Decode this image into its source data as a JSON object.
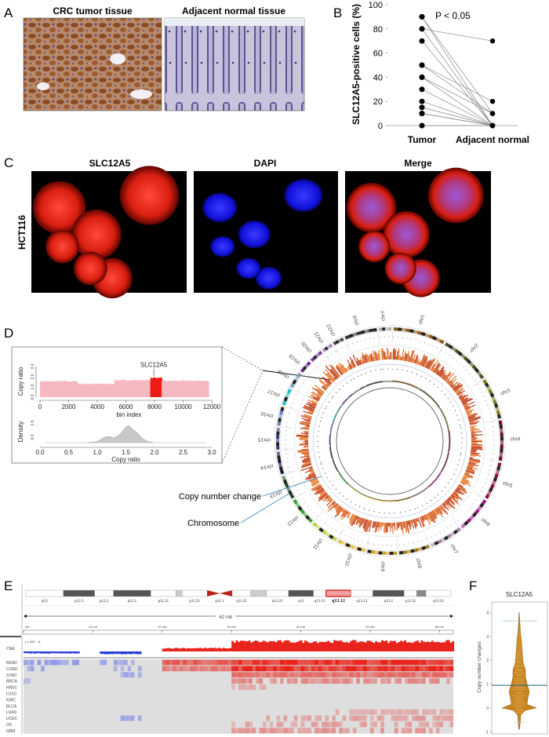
{
  "panel_labels": {
    "a": "A",
    "b": "B",
    "c": "C",
    "d": "D",
    "e": "E",
    "f": "F"
  },
  "panel_a": {
    "tumor_title": "CRC tumor tissue",
    "normal_title": "Adjacent normal tissue"
  },
  "panel_c": {
    "titles": [
      "SLC12A5",
      "DAPI",
      "Merge"
    ],
    "cell_line": "HCT116"
  },
  "panel_d": {
    "gene_label": "SLC12A5",
    "copy_ratio_ylabel": "Copy ratio",
    "copy_ratio_yticks": [
      "0.0",
      "1.0",
      "2.0",
      "3.0"
    ],
    "bin_xlabel": "bin index",
    "bin_xticks": [
      "0",
      "2000",
      "4000",
      "6000",
      "8000",
      "10000",
      "12000"
    ],
    "density_ylabel": "Density",
    "density_yticks": [
      "0.0",
      "1.5"
    ],
    "density_xlabel": "Copy ratio",
    "density_xticks": [
      "0.0",
      "0.5",
      "1.0",
      "1.5",
      "2.0",
      "2.5",
      "3.0"
    ],
    "callout_cnv": "Copy number change",
    "callout_chrom": "Chromosome",
    "chromosomes": [
      "chr1",
      "chr2",
      "chr3",
      "chr4",
      "chr5",
      "chr6",
      "chr7",
      "chr8",
      "chr9",
      "chr10",
      "chr11",
      "chr12",
      "chr13",
      "chr14",
      "chr15",
      "chr16",
      "chr17",
      "chr18",
      "chr19",
      "chr20",
      "chr21",
      "chr22",
      "chrX",
      "chrY"
    ]
  },
  "panel_e": {
    "size_label": "62 mb",
    "scale_ticks": [
      "mb",
      "10 mb",
      "20 mb",
      "30 mb",
      "40 mb",
      "50 mb",
      "60 mb"
    ],
    "range_label": "[-1.000 - 1]",
    "cna_label": "CNA",
    "bands": [
      {
        "name": "p13",
        "stain": "gneg"
      },
      {
        "name": "p12.3",
        "stain": "gpos"
      },
      {
        "name": "p12.2",
        "stain": "gneg"
      },
      {
        "name": "p12.1",
        "stain": "gpos"
      },
      {
        "name": "p11.21",
        "stain": "gneg"
      },
      {
        "name": "",
        "stain": "gvar"
      },
      {
        "name": "p11.21",
        "stain": "gneg"
      },
      {
        "name": "p11.1",
        "stain": "acen"
      },
      {
        "name": "q11.21",
        "stain": "gneg"
      },
      {
        "name": "",
        "stain": "gvar"
      },
      {
        "name": "q11.21",
        "stain": "gneg"
      },
      {
        "name": "q12",
        "stain": "gpos"
      },
      {
        "name": "q13.11",
        "stain": "gneg"
      },
      {
        "name": "q13.12",
        "stain": "highlight"
      },
      {
        "name": "q13.13",
        "stain": "gneg"
      },
      {
        "name": "q13.2",
        "stain": "gpos"
      },
      {
        "name": "q13.31",
        "stain": "gneg"
      },
      {
        "name": "",
        "stain": "gpos50"
      },
      {
        "name": "q13.33",
        "stain": "gneg"
      }
    ],
    "cancers": [
      "READ",
      "COAD",
      "STAD",
      "BRCA",
      "HNSC",
      "LUSC",
      "KIRC",
      "BLCA",
      "LUAD",
      "UCEC",
      "OV",
      "GBM"
    ]
  },
  "panel_f": {
    "title": "SLC12A5",
    "ylabel": "Copy number changes",
    "yticks": [
      "-1",
      "0",
      "1",
      "2",
      "3",
      "4"
    ]
  },
  "colors": {
    "gain": "#e8231b",
    "loss": "#2b3fd6",
    "violin": "#c8841e",
    "median": "#1f5f6e"
  },
  "chart_data": [
    {
      "type": "scatter",
      "panel": "B",
      "subtype": "paired-dot",
      "categories": [
        "Tumor",
        "Adjacent normal"
      ],
      "ylabel": "SLC12A5-positive cells (%)",
      "ylim": [
        0,
        100
      ],
      "yticks": [
        "0",
        "20",
        "40",
        "60",
        "80",
        "100"
      ],
      "annotation": "P < 0.05",
      "pairs": [
        [
          90,
          0
        ],
        [
          90,
          10
        ],
        [
          80,
          70
        ],
        [
          80,
          0
        ],
        [
          70,
          0
        ],
        [
          50,
          20
        ],
        [
          50,
          10
        ],
        [
          40,
          10
        ],
        [
          40,
          0
        ],
        [
          30,
          0
        ],
        [
          20,
          0
        ],
        [
          15,
          0
        ],
        [
          10,
          0
        ],
        [
          10,
          0
        ],
        [
          0,
          0
        ]
      ]
    },
    {
      "type": "area",
      "panel": "D",
      "xlabel": "bin index",
      "ylabel": "Copy ratio",
      "xlim": [
        0,
        12000
      ],
      "ylim": [
        0,
        3
      ],
      "segments": [
        [
          0,
          2600,
          1.55
        ],
        [
          2600,
          5200,
          1.3
        ],
        [
          5200,
          7700,
          1.65
        ],
        [
          7700,
          8500,
          1.9
        ],
        [
          8500,
          11800,
          1.6
        ]
      ],
      "highlight": [
        7700,
        8500
      ]
    },
    {
      "type": "area",
      "panel": "D",
      "xlabel": "Copy ratio",
      "ylabel": "Density",
      "xlim": [
        0,
        3
      ],
      "x": [
        0.8,
        1.0,
        1.1,
        1.2,
        1.3,
        1.4,
        1.5,
        1.55,
        1.6,
        1.7,
        1.8,
        1.9,
        2.0
      ],
      "y": [
        0,
        0.1,
        0.45,
        0.6,
        0.45,
        0.8,
        1.5,
        1.6,
        1.35,
        0.9,
        0.35,
        0.08,
        0
      ]
    },
    {
      "type": "heatmap",
      "panel": "E",
      "title": "",
      "xlim": [
        0,
        62
      ],
      "cna": [
        [
          0,
          8,
          -0.6
        ],
        [
          11,
          17,
          -0.8
        ],
        [
          20,
          30,
          0.3
        ],
        [
          30,
          62,
          0.9
        ]
      ],
      "rows": {
        "READ": [
          [
            0,
            4,
            -0.4
          ],
          [
            4,
            8,
            -0.4
          ],
          [
            11,
            17,
            -0.35
          ],
          [
            20,
            30,
            0.7
          ],
          [
            30,
            62,
            0.95
          ]
        ],
        "COAD": [
          [
            0,
            3,
            -0.35
          ],
          [
            13,
            17,
            -0.35
          ],
          [
            20,
            30,
            0.5
          ],
          [
            30,
            62,
            0.9
          ]
        ],
        "STAD": [
          [
            14,
            17,
            -0.35
          ],
          [
            30,
            62,
            0.55
          ]
        ],
        "BRCA": [
          [
            0,
            1,
            -0.2
          ],
          [
            30,
            62,
            0.4
          ]
        ],
        "HNSC": [
          [
            30,
            35,
            0.25
          ]
        ],
        "LUSC": [],
        "KIRC": [],
        "BLCA": [],
        "LUAD": [
          [
            45,
            62,
            0.25
          ]
        ],
        "UCEC": [
          [
            14,
            17,
            -0.35
          ],
          [
            35,
            62,
            0.3
          ]
        ],
        "OV": [
          [
            30,
            62,
            0.3
          ]
        ],
        "GBM": [
          [
            30,
            62,
            0.35
          ]
        ]
      }
    },
    {
      "type": "violin",
      "panel": "F",
      "title": "SLC12A5",
      "ylabel": "Copy number changes",
      "ylim": [
        -1.1,
        4.1
      ],
      "median": 0.95,
      "max_marker": 3.65
    }
  ]
}
